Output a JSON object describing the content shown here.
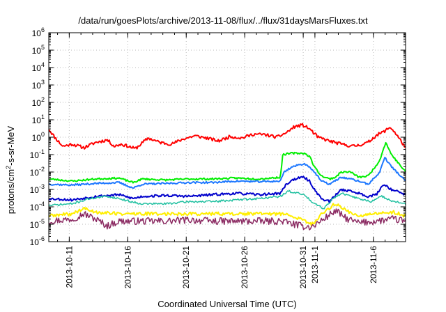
{
  "chart_data": {
    "type": "line",
    "title": "/data/run/goesPlots/archive/2013-11-08/flux/../flux/31daysMarsFluxes.txt",
    "xlabel": "Coordinated Universal Time (UTC)",
    "ylabel_prefix": "protons/cm",
    "ylabel_sup": "2",
    "ylabel_suffix": "-s-sr-MeV",
    "yscale": "log",
    "ylim_exp": [
      -6,
      6
    ],
    "ytick_exps": [
      -6,
      -5,
      -4,
      -3,
      -2,
      -1,
      0,
      1,
      2,
      3,
      4,
      5,
      6
    ],
    "xlim_day": [
      0,
      30.5
    ],
    "xticks": [
      {
        "label": "2013-10-11",
        "day": 1.75
      },
      {
        "label": "2013-10-16",
        "day": 6.75
      },
      {
        "label": "2013-10-21",
        "day": 11.75
      },
      {
        "label": "2013-10-26",
        "day": 16.75
      },
      {
        "label": "2013-10-31",
        "day": 21.75
      },
      {
        "label": "2013-11-1",
        "day": 22.75
      },
      {
        "label": "2013-11-6",
        "day": 27.75
      }
    ],
    "grid": true,
    "series": [
      {
        "color": "#ff0000",
        "width": 2,
        "noise": 0.09,
        "seed": 11,
        "points": [
          [
            0,
            3.0
          ],
          [
            0.5,
            1.0
          ],
          [
            1.2,
            0.3
          ],
          [
            2,
            0.4
          ],
          [
            3,
            0.25
          ],
          [
            4,
            0.5
          ],
          [
            5,
            0.7
          ],
          [
            5.6,
            0.3
          ],
          [
            6.2,
            0.4
          ],
          [
            7.4,
            0.22
          ],
          [
            8.5,
            0.9
          ],
          [
            9.5,
            0.5
          ],
          [
            10.5,
            0.4
          ],
          [
            11.5,
            0.8
          ],
          [
            12.5,
            1.2
          ],
          [
            13.5,
            0.9
          ],
          [
            14.5,
            0.6
          ],
          [
            15.5,
            1.1
          ],
          [
            16.5,
            0.9
          ],
          [
            17.5,
            1.5
          ],
          [
            18.5,
            1.4
          ],
          [
            19.5,
            1.0
          ],
          [
            20.3,
            1.8
          ],
          [
            21,
            4.0
          ],
          [
            21.7,
            5.0
          ],
          [
            22.3,
            3.0
          ],
          [
            23,
            1.0
          ],
          [
            24,
            0.6
          ],
          [
            25,
            0.4
          ],
          [
            26,
            0.3
          ],
          [
            26.5,
            0.35
          ],
          [
            27.3,
            0.5
          ],
          [
            28,
            1.3
          ],
          [
            28.6,
            2.0
          ],
          [
            29.2,
            3.8
          ],
          [
            29.7,
            1.5
          ],
          [
            30.5,
            0.25
          ]
        ]
      },
      {
        "color": "#00ee00",
        "width": 2,
        "noise": 0.05,
        "seed": 23,
        "points": [
          [
            0,
            0.004
          ],
          [
            2,
            0.003
          ],
          [
            4,
            0.004
          ],
          [
            6,
            0.0045
          ],
          [
            7.2,
            0.0025
          ],
          [
            8,
            0.004
          ],
          [
            10,
            0.0035
          ],
          [
            12,
            0.004
          ],
          [
            14,
            0.004
          ],
          [
            16,
            0.0045
          ],
          [
            18,
            0.004
          ],
          [
            19.8,
            0.005
          ],
          [
            20,
            0.1
          ],
          [
            20.8,
            0.12
          ],
          [
            21.8,
            0.12
          ],
          [
            22.3,
            0.08
          ],
          [
            22.7,
            0.02
          ],
          [
            23.3,
            0.006
          ],
          [
            24,
            0.004
          ],
          [
            24.5,
            0.005
          ],
          [
            25,
            0.01
          ],
          [
            25.8,
            0.01
          ],
          [
            26.5,
            0.005
          ],
          [
            27.3,
            0.006
          ],
          [
            27.9,
            0.02
          ],
          [
            28.3,
            0.05
          ],
          [
            28.8,
            0.5
          ],
          [
            29.3,
            0.1
          ],
          [
            30.5,
            0.01
          ]
        ]
      },
      {
        "color": "#1e78ff",
        "width": 2,
        "noise": 0.05,
        "seed": 37,
        "points": [
          [
            0,
            0.002
          ],
          [
            2,
            0.0018
          ],
          [
            4,
            0.0022
          ],
          [
            6,
            0.0025
          ],
          [
            7.2,
            0.0012
          ],
          [
            8,
            0.002
          ],
          [
            10,
            0.0022
          ],
          [
            12,
            0.0025
          ],
          [
            14,
            0.0025
          ],
          [
            16,
            0.003
          ],
          [
            18,
            0.0028
          ],
          [
            19.8,
            0.003
          ],
          [
            20.1,
            0.01
          ],
          [
            20.8,
            0.02
          ],
          [
            21.8,
            0.03
          ],
          [
            22.3,
            0.02
          ],
          [
            22.7,
            0.01
          ],
          [
            23.3,
            0.003
          ],
          [
            24,
            0.002
          ],
          [
            25,
            0.005
          ],
          [
            25.8,
            0.004
          ],
          [
            26.5,
            0.003
          ],
          [
            27.3,
            0.002
          ],
          [
            27.9,
            0.005
          ],
          [
            28.3,
            0.01
          ],
          [
            28.7,
            0.07
          ],
          [
            29.3,
            0.02
          ],
          [
            30.5,
            0.003
          ]
        ]
      },
      {
        "color": "#0000cc",
        "width": 2,
        "noise": 0.07,
        "seed": 53,
        "points": [
          [
            0,
            0.0003
          ],
          [
            2,
            0.00025
          ],
          [
            4,
            0.0004
          ],
          [
            6,
            0.0005
          ],
          [
            7.2,
            0.0003
          ],
          [
            8,
            0.0004
          ],
          [
            10,
            0.00045
          ],
          [
            12,
            0.0004
          ],
          [
            14,
            0.0005
          ],
          [
            16,
            0.0006
          ],
          [
            18,
            0.0005
          ],
          [
            19.8,
            0.0006
          ],
          [
            20.3,
            0.002
          ],
          [
            21,
            0.004
          ],
          [
            21.8,
            0.005
          ],
          [
            22.3,
            0.003
          ],
          [
            22.7,
            0.001
          ],
          [
            23.3,
            0.0003
          ],
          [
            24,
            0.0002
          ],
          [
            25,
            0.001
          ],
          [
            25.8,
            0.0008
          ],
          [
            26.5,
            0.0006
          ],
          [
            27.3,
            0.0004
          ],
          [
            28,
            0.0005
          ],
          [
            28.6,
            0.002
          ],
          [
            29.3,
            0.001
          ],
          [
            30.5,
            0.0005
          ]
        ]
      },
      {
        "color": "#20c0a0",
        "width": 1.5,
        "noise": 0.06,
        "seed": 71,
        "points": [
          [
            0,
            0.00012
          ],
          [
            2,
            0.00015
          ],
          [
            3.5,
            0.0003
          ],
          [
            5,
            0.0004
          ],
          [
            6,
            0.0003
          ],
          [
            7,
            0.0002
          ],
          [
            8,
            0.00015
          ],
          [
            10,
            0.00015
          ],
          [
            12,
            0.0002
          ],
          [
            14,
            0.0002
          ],
          [
            16,
            0.00025
          ],
          [
            18,
            0.0003
          ],
          [
            19.8,
            0.0004
          ],
          [
            20.5,
            0.0008
          ],
          [
            21.8,
            0.0005
          ],
          [
            22.5,
            0.0002
          ],
          [
            23.5,
            8e-05
          ],
          [
            24.3,
            0.0003
          ],
          [
            25,
            0.0006
          ],
          [
            25.8,
            0.0004
          ],
          [
            26.5,
            0.0003
          ],
          [
            27.5,
            0.0002
          ],
          [
            28.5,
            0.0004
          ],
          [
            29.5,
            0.0002
          ],
          [
            30.5,
            0.00015
          ]
        ]
      },
      {
        "color": "#ffee00",
        "width": 2,
        "noise": 0.1,
        "seed": 89,
        "points": [
          [
            0,
            3e-05
          ],
          [
            2,
            4e-05
          ],
          [
            3,
            8e-05
          ],
          [
            4,
            5e-05
          ],
          [
            6,
            4e-05
          ],
          [
            8,
            4e-05
          ],
          [
            10,
            4e-05
          ],
          [
            12,
            4e-05
          ],
          [
            14,
            4e-05
          ],
          [
            16,
            4e-05
          ],
          [
            18,
            4e-05
          ],
          [
            20,
            4e-05
          ],
          [
            21.5,
            2e-05
          ],
          [
            22.5,
            1e-05
          ],
          [
            23.5,
            5e-05
          ],
          [
            24.5,
            0.00015
          ],
          [
            25.5,
            6e-05
          ],
          [
            26.5,
            3e-05
          ],
          [
            28,
            4e-05
          ],
          [
            29.5,
            5e-05
          ],
          [
            30.5,
            3e-05
          ]
        ]
      },
      {
        "color": "#8b2a62",
        "width": 1.5,
        "noise": 0.2,
        "seed": 97,
        "points": [
          [
            0,
            1.5e-05
          ],
          [
            2,
            2e-05
          ],
          [
            3,
            4e-05
          ],
          [
            4,
            2e-05
          ],
          [
            5,
            8e-06
          ],
          [
            6,
            1.5e-05
          ],
          [
            8,
            1.5e-05
          ],
          [
            10,
            1.5e-05
          ],
          [
            12,
            1.8e-05
          ],
          [
            14,
            1.5e-05
          ],
          [
            16,
            1.5e-05
          ],
          [
            18,
            1.5e-05
          ],
          [
            20,
            1.5e-05
          ],
          [
            21.5,
            8e-06
          ],
          [
            22.5,
            7e-06
          ],
          [
            23.5,
            2e-05
          ],
          [
            24.5,
            6e-05
          ],
          [
            25.5,
            2e-05
          ],
          [
            26.5,
            1.2e-05
          ],
          [
            28,
            1.5e-05
          ],
          [
            29.5,
            2e-05
          ],
          [
            30.5,
            1.5e-05
          ]
        ]
      }
    ]
  }
}
